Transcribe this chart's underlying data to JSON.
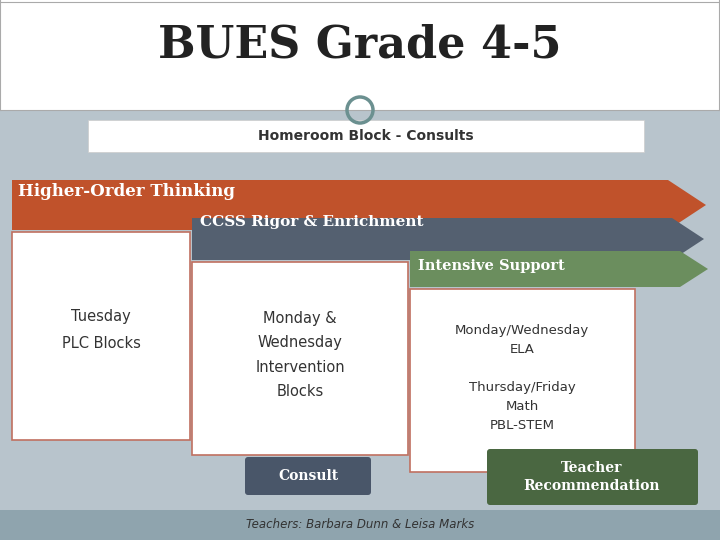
{
  "title": "BUES Grade 4-5",
  "title_fontsize": 32,
  "title_fontweight": "bold",
  "slide_bg": "#b8c4cc",
  "homeroom_text": "Homeroom Block - Consults",
  "arrow1_label": "Higher-Order Thinking",
  "arrow1_color": "#c0522b",
  "arrow2_label": "CCSS Rigor & Enrichment",
  "arrow2_color": "#546070",
  "arrow3_label": "Intensive Support",
  "arrow3_color": "#6b8e5e",
  "box1_text": "Tuesday\nPLC Blocks",
  "box1_border": "#c07060",
  "box2_text": "Monday &\nWednesday\nIntervention\nBlocks",
  "box2_border": "#c07060",
  "box3_text": "Monday/Wednesday\nELA\n\nThursday/Friday\nMath\nPBL-STEM",
  "box3_border": "#c07060",
  "consult_text": "Consult",
  "consult_color": "#495669",
  "teacher_rec_text": "Teacher\nRecommendation",
  "teacher_rec_color": "#4a6741",
  "footer_text": "Teachers: Barbara Dunn & Leisa Marks",
  "footer_bg": "#8fa4ae",
  "circle_edgecolor": "#6b9090",
  "white": "#ffffff",
  "text_dark": "#222222"
}
